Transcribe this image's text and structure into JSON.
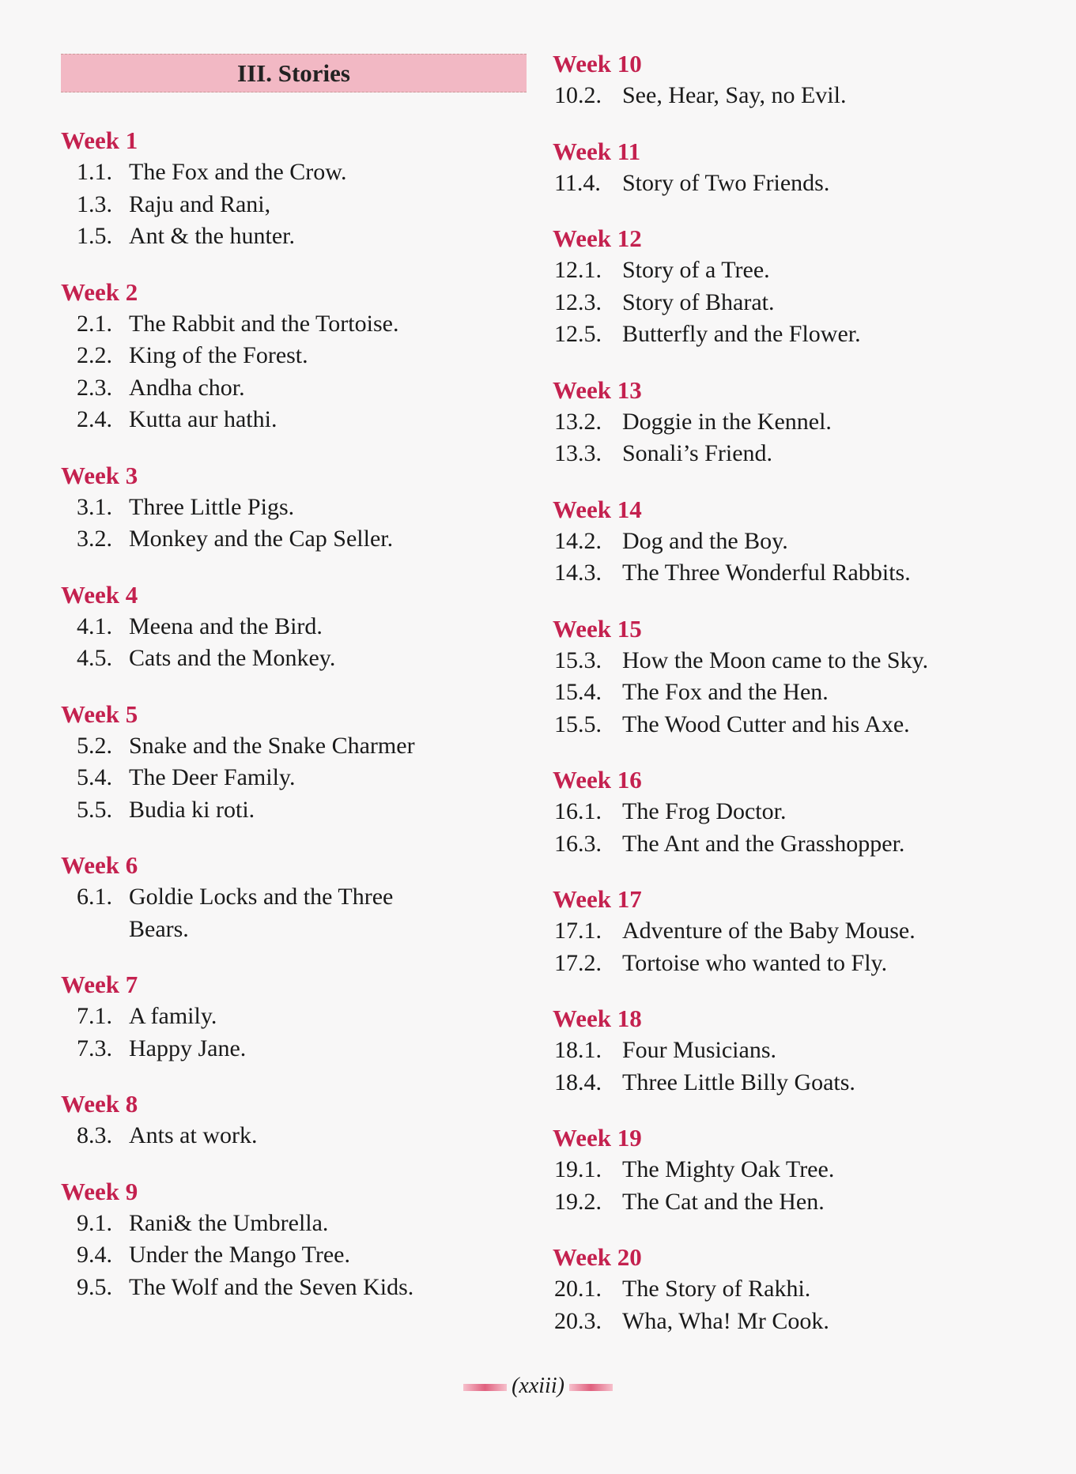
{
  "section_title": "III. Stories",
  "colors": {
    "heading": "#c4214f",
    "title_band": "#f2b8c4"
  },
  "left_column": [
    {
      "week": "Week 1",
      "items": [
        [
          "1.1.",
          "The Fox and the Crow."
        ],
        [
          "1.3.",
          "Raju and Rani,"
        ],
        [
          "1.5.",
          "Ant & the hunter."
        ]
      ]
    },
    {
      "week": "Week 2",
      "items": [
        [
          "2.1.",
          "The Rabbit and the Tortoise."
        ],
        [
          "2.2.",
          "King of the Forest."
        ],
        [
          "2.3.",
          "Andha chor."
        ],
        [
          "2.4.",
          "Kutta aur hathi."
        ]
      ]
    },
    {
      "week": "Week 3",
      "items": [
        [
          "3.1.",
          "Three Little Pigs."
        ],
        [
          "3.2.",
          "Monkey and the Cap Seller."
        ]
      ]
    },
    {
      "week": "Week 4",
      "items": [
        [
          "4.1.",
          "Meena and the Bird."
        ],
        [
          "4.5.",
          "Cats and the Monkey."
        ]
      ]
    },
    {
      "week": "Week 5",
      "items": [
        [
          "5.2.",
          "Snake and the Snake Charmer"
        ],
        [
          "5.4.",
          "The Deer Family."
        ],
        [
          "5.5.",
          "Budia ki roti."
        ]
      ]
    },
    {
      "week": "Week 6",
      "items": [
        [
          "6.1.",
          "Goldie Locks and the Three"
        ],
        [
          "",
          "Bears."
        ]
      ]
    },
    {
      "week": "Week 7",
      "items": [
        [
          "7.1.",
          "A family."
        ],
        [
          "7.3.",
          "Happy Jane."
        ]
      ]
    },
    {
      "week": "Week 8",
      "items": [
        [
          "8.3.",
          "Ants at work."
        ]
      ]
    },
    {
      "week": "Week 9",
      "items": [
        [
          "9.1.",
          "Rani& the Umbrella."
        ],
        [
          "9.4.",
          "Under the Mango Tree."
        ],
        [
          "9.5.",
          "The Wolf and the Seven Kids."
        ]
      ]
    }
  ],
  "right_column": [
    {
      "week": "Week 10",
      "items": [
        [
          "10.2.",
          "See, Hear, Say, no Evil."
        ]
      ]
    },
    {
      "week": "Week 11",
      "items": [
        [
          "11.4.",
          "Story of Two Friends."
        ]
      ]
    },
    {
      "week": "Week 12",
      "items": [
        [
          "12.1.",
          "Story of a Tree."
        ],
        [
          "12.3.",
          "Story of Bharat."
        ],
        [
          "12.5.",
          "Butterfly and the Flower."
        ]
      ]
    },
    {
      "week": "Week 13",
      "items": [
        [
          "13.2.",
          "Doggie in the Kennel."
        ],
        [
          "13.3.",
          "Sonali’s Friend."
        ]
      ]
    },
    {
      "week": "Week 14",
      "items": [
        [
          "14.2.",
          "Dog and the Boy."
        ],
        [
          "14.3.",
          "The Three Wonderful Rabbits."
        ]
      ]
    },
    {
      "week": "Week 15",
      "items": [
        [
          "15.3.",
          "How the Moon came to the Sky."
        ],
        [
          "15.4.",
          "The Fox and the Hen."
        ],
        [
          "15.5.",
          "The Wood Cutter and his Axe."
        ]
      ]
    },
    {
      "week": "Week 16",
      "items": [
        [
          "16.1.",
          "The Frog Doctor."
        ],
        [
          "16.3.",
          "The Ant and the Grasshopper."
        ]
      ]
    },
    {
      "week": "Week 17",
      "items": [
        [
          "17.1.",
          "Adventure of the Baby Mouse."
        ],
        [
          "17.2.",
          "Tortoise who wanted to Fly."
        ]
      ]
    },
    {
      "week": "Week 18",
      "items": [
        [
          "18.1.",
          "Four Musicians."
        ],
        [
          "18.4.",
          "Three Little Billy Goats."
        ]
      ]
    },
    {
      "week": "Week 19",
      "items": [
        [
          "19.1.",
          "The Mighty Oak Tree."
        ],
        [
          "19.2.",
          "The Cat and the Hen."
        ]
      ]
    },
    {
      "week": "Week 20",
      "items": [
        [
          "20.1.",
          "The Story of Rakhi."
        ],
        [
          "20.3.",
          "Wha, Wha! Mr Cook."
        ]
      ]
    }
  ],
  "page_number": "(xxiii)"
}
